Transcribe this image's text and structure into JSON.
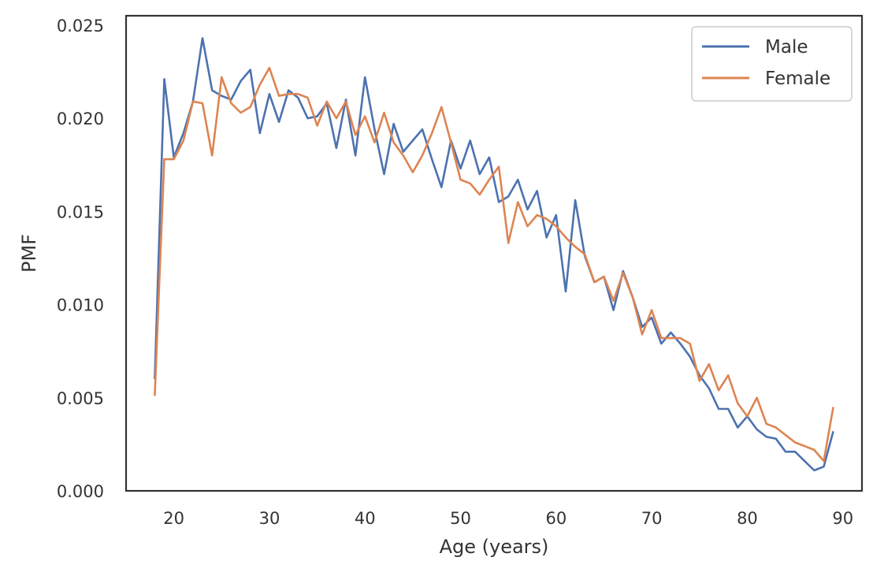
{
  "chart_data": {
    "type": "line",
    "title": "",
    "xlabel": "Age (years)",
    "ylabel": "PMF",
    "xlim": [
      15,
      92
    ],
    "ylim": [
      0,
      0.0255
    ],
    "xticks": [
      20,
      30,
      40,
      50,
      60,
      70,
      80,
      90
    ],
    "xtick_labels": [
      "20",
      "30",
      "40",
      "50",
      "60",
      "70",
      "80",
      "90"
    ],
    "yticks": [
      0,
      0.005,
      0.01,
      0.015,
      0.02,
      0.025
    ],
    "ytick_labels": [
      "0.000",
      "0.005",
      "0.010",
      "0.015",
      "0.020",
      "0.025"
    ],
    "grid": false,
    "legend_position": "top-right",
    "x": [
      18,
      19,
      20,
      21,
      22,
      23,
      24,
      25,
      26,
      27,
      28,
      29,
      30,
      31,
      32,
      33,
      34,
      35,
      36,
      37,
      38,
      39,
      40,
      41,
      42,
      43,
      44,
      45,
      46,
      47,
      48,
      49,
      50,
      51,
      52,
      53,
      54,
      55,
      56,
      57,
      58,
      59,
      60,
      61,
      62,
      63,
      64,
      65,
      66,
      67,
      68,
      69,
      70,
      71,
      72,
      73,
      74,
      75,
      76,
      77,
      78,
      79,
      80,
      81,
      82,
      83,
      84,
      85,
      86,
      87,
      88,
      89
    ],
    "series": [
      {
        "name": "Male",
        "color": "#4c72b0",
        "values": [
          0.006,
          0.0221,
          0.0179,
          0.0192,
          0.0209,
          0.0243,
          0.0215,
          0.0212,
          0.021,
          0.022,
          0.0226,
          0.0192,
          0.0213,
          0.0198,
          0.0215,
          0.0211,
          0.02,
          0.0201,
          0.0208,
          0.0184,
          0.021,
          0.018,
          0.0222,
          0.0194,
          0.017,
          0.0197,
          0.0182,
          0.0188,
          0.0194,
          0.0178,
          0.0163,
          0.0188,
          0.0173,
          0.0188,
          0.017,
          0.0179,
          0.0155,
          0.0158,
          0.0167,
          0.0151,
          0.0161,
          0.0136,
          0.0148,
          0.0107,
          0.0156,
          0.0126,
          0.0112,
          0.0115,
          0.0097,
          0.0118,
          0.0104,
          0.0088,
          0.0093,
          0.0079,
          0.0085,
          0.0079,
          0.0072,
          0.0062,
          0.0055,
          0.0044,
          0.0044,
          0.0034,
          0.004,
          0.0033,
          0.0029,
          0.0028,
          0.0021,
          0.0021,
          0.0016,
          0.0011,
          0.0013,
          0.0032
        ]
      },
      {
        "name": "Female",
        "color": "#dd8452",
        "values": [
          0.0051,
          0.0178,
          0.0178,
          0.0188,
          0.0209,
          0.0208,
          0.018,
          0.0222,
          0.0208,
          0.0203,
          0.0206,
          0.0218,
          0.0227,
          0.0212,
          0.0213,
          0.0213,
          0.0211,
          0.0196,
          0.0209,
          0.02,
          0.0209,
          0.0191,
          0.0201,
          0.0187,
          0.0203,
          0.0187,
          0.018,
          0.0171,
          0.018,
          0.0192,
          0.0206,
          0.0187,
          0.0167,
          0.0165,
          0.0159,
          0.0167,
          0.0174,
          0.0133,
          0.0155,
          0.0142,
          0.0148,
          0.0146,
          0.0142,
          0.0136,
          0.0131,
          0.0127,
          0.0112,
          0.0115,
          0.0102,
          0.0117,
          0.0104,
          0.0084,
          0.0097,
          0.0082,
          0.0082,
          0.0082,
          0.0079,
          0.0059,
          0.0068,
          0.0054,
          0.0062,
          0.0047,
          0.004,
          0.005,
          0.0036,
          0.0034,
          0.003,
          0.0026,
          0.0024,
          0.0022,
          0.0016,
          0.0045
        ]
      }
    ]
  }
}
